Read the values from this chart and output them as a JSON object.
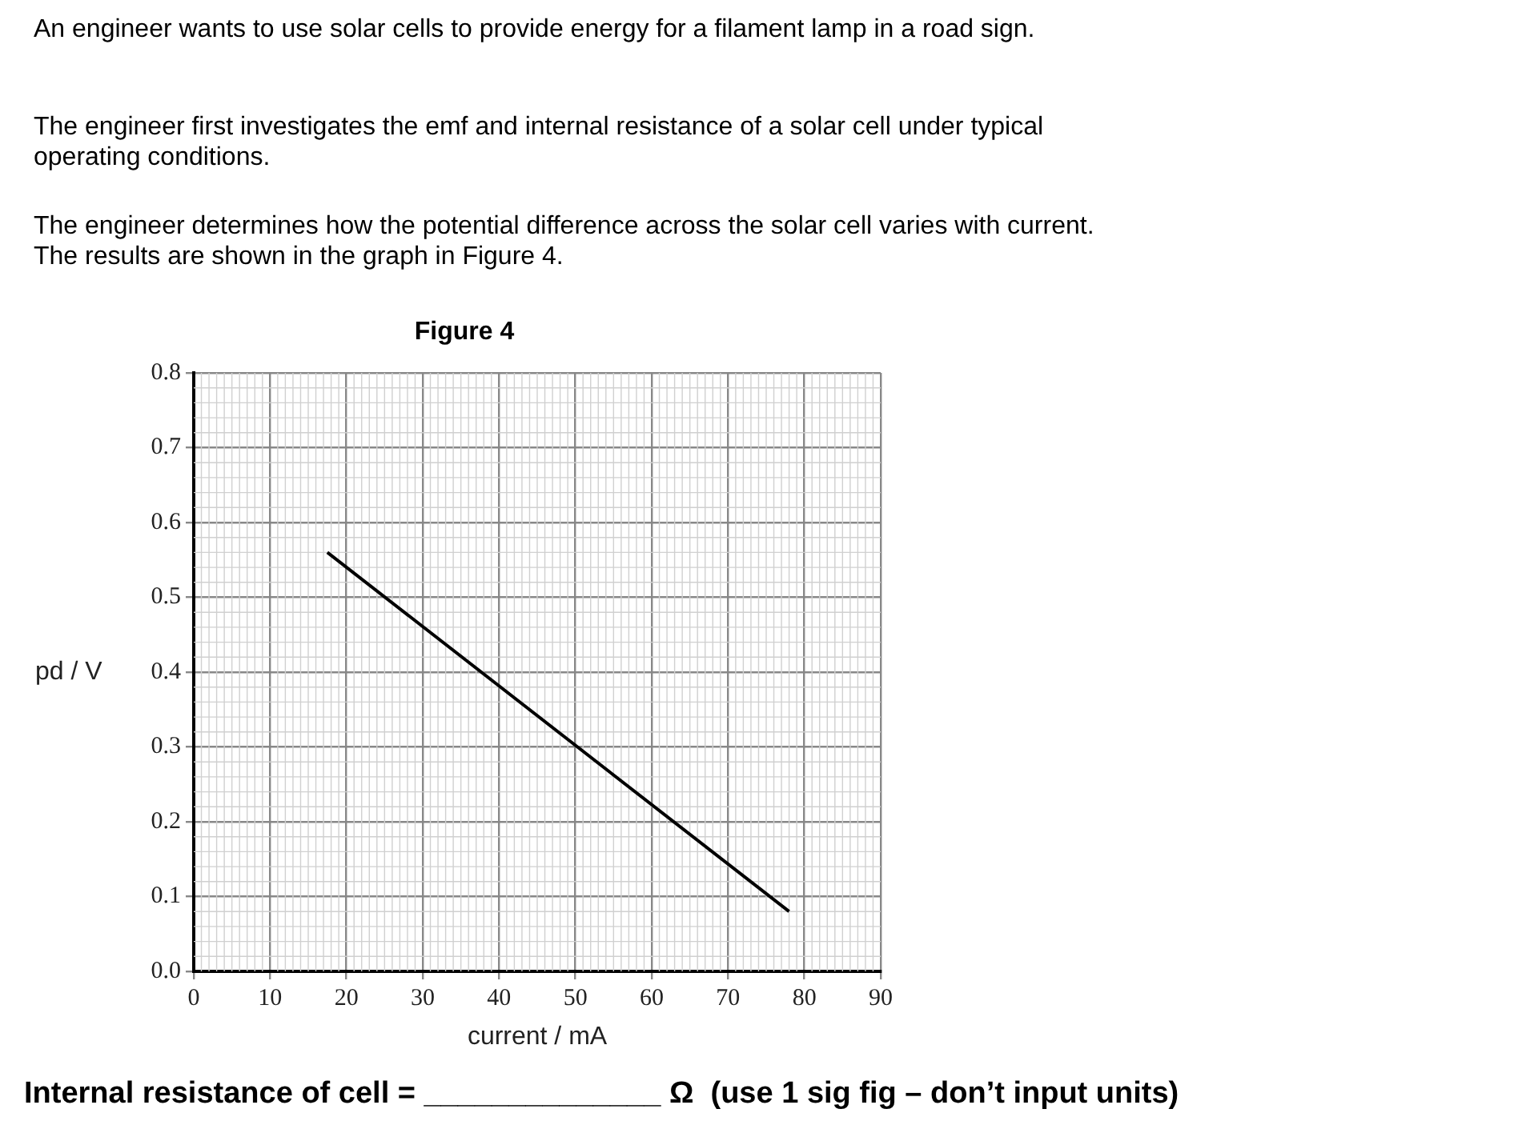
{
  "chart_data": {
    "type": "line",
    "title": "Figure 4",
    "xlabel": "current / mA",
    "ylabel": "pd / V",
    "annotations": [
      "An engineer wants to use solar cells to provide energy for a filament lamp in a road sign.",
      "The engineer first investigates the emf and internal resistance of a solar cell under typical operating conditions.",
      "The engineer determines how the potential difference across the solar cell varies with current.  The results are shown in the graph in Figure 4.",
      "Internal resistance of cell = ______________ Ω  (use 1 sig fig – don’t input units)"
    ],
    "series": [
      {
        "color": "#000000",
        "x": [
          17.5,
          78
        ],
        "values": [
          0.56,
          0.08
        ]
      }
    ],
    "xlim": [
      0,
      90
    ],
    "xticks": [
      0,
      10,
      20,
      30,
      40,
      50,
      60,
      70,
      80,
      90
    ],
    "ylim": [
      0,
      0.8
    ],
    "yticks": [
      {
        "value": 0,
        "label": "0.0"
      },
      0.1,
      0.2,
      0.3,
      0.4,
      0.5,
      0.6,
      0.7,
      0.8
    ],
    "grid": true,
    "marker": "none",
    "line_style": "solid",
    "legend": false
  }
}
